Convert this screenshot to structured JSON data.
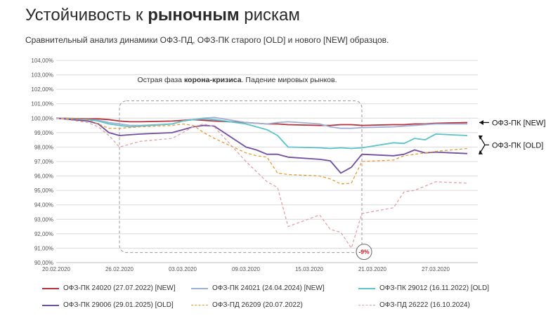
{
  "title": {
    "prefix": "Устойчивость к ",
    "bold": "рыночным",
    "suffix": " рискам"
  },
  "subtitle": "Сравнительный анализ динамики ОФЗ-ПД, ОФЗ-ПК старого [OLD] и нового [NEW] образцов.",
  "colors": {
    "series": [
      "#b5303a",
      "#9fb0d6",
      "#5cc3c8",
      "#6f4fa0",
      "#e8993a",
      "#e4a1a6"
    ],
    "grid": "#d9d9d9",
    "annotation_box": "#9a9a9a",
    "marker": "#c0171e"
  },
  "chart_data": {
    "type": "line",
    "title": "",
    "xlabel": "",
    "ylabel": "",
    "ylim": [
      90,
      104
    ],
    "grid": true,
    "legend_position": "bottom",
    "y_ticks": [
      "90,00%",
      "91,00%",
      "92,00%",
      "93,00%",
      "94,00%",
      "95,00%",
      "96,00%",
      "97,00%",
      "98,00%",
      "99,00%",
      "100,00%",
      "101,00%",
      "102,00%",
      "103,00%",
      "104,00%"
    ],
    "x_tick_labels": [
      "20.02.2020",
      "26.02.2020",
      "03.03.2020",
      "09.03.2020",
      "15.03.2020",
      "21.03.2020",
      "27.03.2020"
    ],
    "x_tick_days": [
      0,
      6,
      12,
      18,
      24,
      30,
      36
    ],
    "x_days": [
      0,
      3,
      4,
      5,
      6,
      7,
      8,
      11,
      12,
      13,
      14,
      15,
      18,
      19,
      20,
      21,
      22,
      25,
      26,
      27,
      28,
      29,
      32,
      33,
      34,
      35,
      36,
      39
    ],
    "series": [
      {
        "name": "ОФЗ-ПК 24020 (27.07.2022) [NEW]",
        "dash": false,
        "values": [
          100.0,
          99.95,
          99.95,
          99.9,
          99.8,
          99.75,
          99.75,
          99.8,
          99.85,
          99.9,
          99.85,
          99.8,
          99.7,
          99.65,
          99.6,
          99.6,
          99.55,
          99.5,
          99.5,
          99.55,
          99.55,
          99.5,
          99.55,
          99.55,
          99.6,
          99.6,
          99.65,
          99.7
        ]
      },
      {
        "name": "ОФЗ-ПК 24021 (24.04.2024) [NEW]",
        "dash": false,
        "values": [
          100.0,
          99.9,
          99.85,
          99.7,
          99.6,
          99.5,
          99.5,
          99.6,
          99.8,
          99.9,
          100.0,
          100.05,
          99.7,
          99.65,
          99.6,
          99.7,
          99.75,
          99.6,
          99.4,
          99.3,
          99.3,
          99.35,
          99.4,
          99.45,
          99.5,
          99.55,
          99.6,
          99.6
        ]
      },
      {
        "name": "ОФЗ-ПК 29012 (16.11.2022) [OLD]",
        "dash": false,
        "values": [
          100.0,
          99.9,
          99.8,
          99.6,
          99.5,
          99.4,
          99.45,
          99.6,
          99.8,
          99.9,
          99.95,
          99.9,
          99.6,
          99.4,
          99.2,
          98.8,
          98.0,
          97.95,
          97.9,
          97.95,
          97.9,
          97.95,
          98.3,
          98.25,
          98.6,
          98.5,
          98.9,
          98.8
        ]
      },
      {
        "name": "ОФЗ-ПК 29006 (29.01.2025) [OLD]",
        "dash": false,
        "values": [
          100.0,
          99.8,
          99.6,
          99.0,
          98.8,
          98.85,
          98.9,
          99.0,
          99.2,
          99.4,
          99.5,
          99.45,
          98.0,
          97.8,
          97.5,
          97.5,
          97.3,
          97.15,
          97.05,
          96.2,
          96.6,
          97.5,
          97.4,
          97.5,
          97.8,
          97.6,
          97.65,
          97.55
        ]
      },
      {
        "name": "ОФЗ-ПД 26209 (20.07.2022)",
        "dash": true,
        "values": [
          100.0,
          99.9,
          99.6,
          99.3,
          99.3,
          99.35,
          99.4,
          99.5,
          99.6,
          99.5,
          99.0,
          98.6,
          97.6,
          97.4,
          97.3,
          96.2,
          96.1,
          96.0,
          95.8,
          95.45,
          95.5,
          97.0,
          97.1,
          97.4,
          97.5,
          97.6,
          97.7,
          97.9
        ]
      },
      {
        "name": "ОФЗ-ПД 26222 (16.10.2024)",
        "dash": true,
        "values": [
          100.0,
          99.7,
          99.4,
          98.8,
          98.0,
          98.2,
          98.4,
          98.6,
          99.0,
          99.4,
          99.6,
          99.4,
          97.0,
          96.3,
          95.6,
          95.2,
          92.5,
          93.3,
          92.3,
          92.1,
          91.0,
          93.4,
          93.8,
          94.9,
          95.0,
          95.3,
          95.6,
          95.5
        ]
      }
    ]
  },
  "annotation": {
    "text_prefix": "Острая фаза ",
    "text_bold": "корона-кризиса",
    "text_suffix": ". Падение мировых рынков.",
    "marker_label": "-9%",
    "day_start": 6,
    "day_end": 29,
    "y_top": 101.2,
    "y_bottom": 90.7
  },
  "callouts": {
    "new": "ОФЗ-ПК [NEW]",
    "old": "ОФЗ-ПК [OLD]"
  }
}
